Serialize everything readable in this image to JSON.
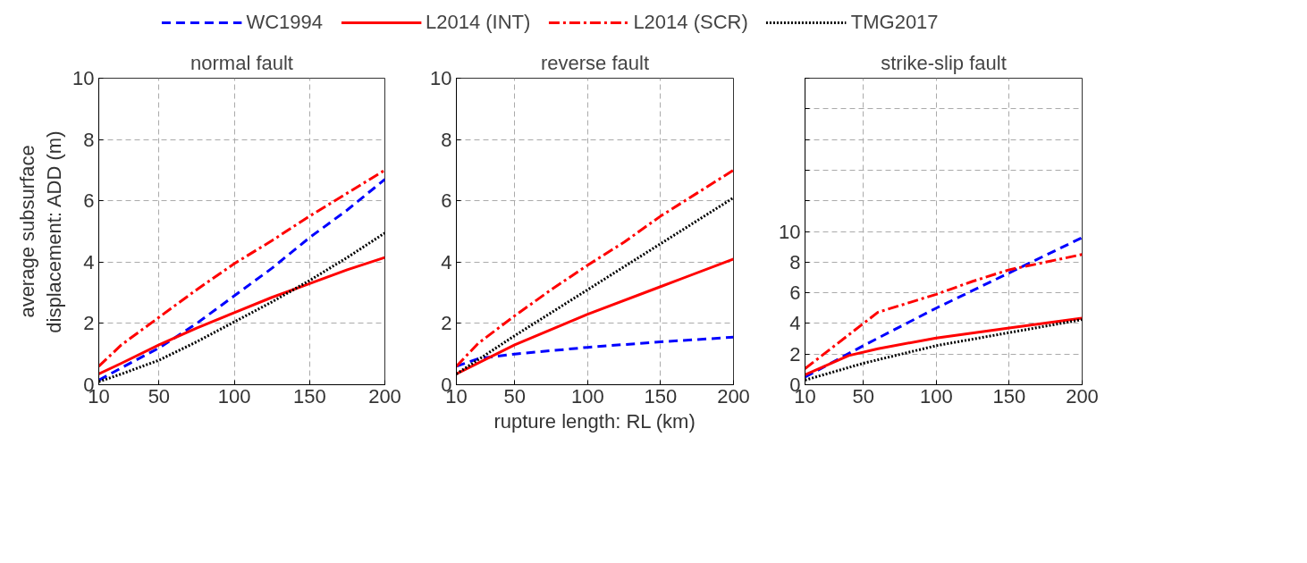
{
  "chart_data": [
    {
      "type": "line",
      "title": "normal fault",
      "ylabel": "average subsurface displacement: ADD (m)",
      "xlim": [
        10,
        200
      ],
      "xticks": [
        10,
        50,
        100,
        150,
        200
      ],
      "ylim": [
        0,
        10
      ],
      "yticks": [
        0,
        2,
        4,
        6,
        8,
        10
      ],
      "grid": true,
      "legend": "top",
      "series": [
        {
          "name": "WC1994",
          "color": "#0000ff",
          "line_style": "dashed",
          "x": [
            10,
            25,
            50,
            75,
            100,
            125,
            150,
            175,
            200
          ],
          "values": [
            0.15,
            0.55,
            1.2,
            2.0,
            2.9,
            3.8,
            4.8,
            5.7,
            6.7
          ]
        },
        {
          "name": "L2014 (INT)",
          "color": "#ff0000",
          "line_style": "solid",
          "x": [
            10,
            25,
            50,
            75,
            100,
            125,
            150,
            175,
            200
          ],
          "values": [
            0.35,
            0.7,
            1.3,
            1.85,
            2.35,
            2.85,
            3.3,
            3.75,
            4.15
          ]
        },
        {
          "name": "L2014 (SCR)",
          "color": "#ff0000",
          "line_style": "dashdot",
          "x": [
            10,
            25,
            50,
            75,
            100,
            125,
            150,
            175,
            200
          ],
          "values": [
            0.6,
            1.3,
            2.2,
            3.1,
            3.95,
            4.7,
            5.5,
            6.25,
            7.0
          ]
        },
        {
          "name": "TMG2017",
          "color": "#000000",
          "line_style": "dotted",
          "x": [
            10,
            25,
            50,
            75,
            100,
            125,
            150,
            175,
            200
          ],
          "values": [
            0.1,
            0.35,
            0.8,
            1.4,
            2.05,
            2.7,
            3.4,
            4.15,
            4.95
          ]
        }
      ]
    },
    {
      "type": "line",
      "title": "reverse fault",
      "xlabel": "rupture length: RL (km)",
      "xlim": [
        10,
        200
      ],
      "xticks": [
        10,
        50,
        100,
        150,
        200
      ],
      "ylim": [
        0,
        10
      ],
      "yticks": [
        0,
        2,
        4,
        6,
        8,
        10
      ],
      "grid": true,
      "series": [
        {
          "color": "#0000ff",
          "line_style": "dashed",
          "x": [
            10,
            25,
            50,
            100,
            150,
            200
          ],
          "values": [
            0.6,
            0.85,
            1.0,
            1.22,
            1.4,
            1.55
          ]
        },
        {
          "color": "#ff0000",
          "line_style": "solid",
          "x": [
            10,
            50,
            100,
            150,
            200
          ],
          "values": [
            0.35,
            1.3,
            2.3,
            3.2,
            4.1
          ]
        },
        {
          "color": "#ff0000",
          "line_style": "dashdot",
          "x": [
            10,
            25,
            50,
            75,
            100,
            125,
            150,
            175,
            200
          ],
          "values": [
            0.6,
            1.35,
            2.25,
            3.1,
            3.9,
            4.65,
            5.5,
            6.25,
            7.0
          ]
        },
        {
          "color": "#000000",
          "line_style": "dotted",
          "x": [
            10,
            50,
            100,
            150,
            200
          ],
          "values": [
            0.35,
            1.6,
            3.1,
            4.6,
            6.1
          ]
        }
      ]
    },
    {
      "type": "line",
      "title": "strike-slip fault",
      "xlim": [
        10,
        200
      ],
      "xticks": [
        10,
        50,
        100,
        150,
        200
      ],
      "ylim": [
        0,
        20
      ],
      "yticks": [
        0,
        2,
        4,
        6,
        8,
        10,
        {
          "value": 12,
          "label": null
        },
        {
          "value": 14,
          "label": null
        },
        {
          "value": 16,
          "label": null
        },
        {
          "value": 18,
          "label": null
        },
        {
          "value": 20,
          "label": null
        }
      ],
      "grid": true,
      "series": [
        {
          "color": "#0000ff",
          "line_style": "dashed",
          "x": [
            10,
            50,
            100,
            150,
            200
          ],
          "values": [
            0.5,
            2.55,
            5.0,
            7.3,
            9.6
          ]
        },
        {
          "color": "#ff0000",
          "line_style": "solid",
          "x": [
            10,
            40,
            60,
            100,
            150,
            200
          ],
          "values": [
            0.65,
            1.9,
            2.35,
            3.05,
            3.7,
            4.35
          ]
        },
        {
          "color": "#ff0000",
          "line_style": "dashdot",
          "x": [
            10,
            60,
            100,
            125,
            150,
            175,
            200
          ],
          "values": [
            1.05,
            4.73,
            5.9,
            6.75,
            7.5,
            8.0,
            8.5
          ]
        },
        {
          "color": "#000000",
          "line_style": "dotted",
          "x": [
            10,
            50,
            100,
            150,
            200
          ],
          "values": [
            0.3,
            1.4,
            2.55,
            3.4,
            4.25
          ]
        }
      ]
    }
  ]
}
